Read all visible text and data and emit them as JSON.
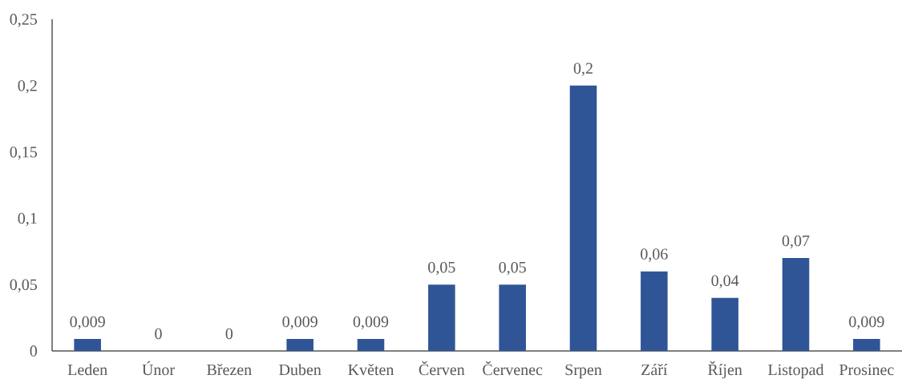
{
  "chart_data": {
    "type": "bar",
    "categories": [
      "Leden",
      "Únor",
      "Březen",
      "Duben",
      "Květen",
      "Červen",
      "Červenec",
      "Srpen",
      "Září",
      "Říjen",
      "Listopad",
      "Prosinec"
    ],
    "values": [
      0.009,
      0,
      0,
      0.009,
      0.009,
      0.05,
      0.05,
      0.2,
      0.06,
      0.04,
      0.07,
      0.009
    ],
    "value_labels": [
      "0,009",
      "0",
      "0",
      "0,009",
      "0,009",
      "0,05",
      "0,05",
      "0,2",
      "0,06",
      "0,04",
      "0,07",
      "0,009"
    ],
    "color": "#2f5597",
    "ylim": [
      0,
      0.25
    ],
    "yticks": [
      0,
      {
        "value": 0.05,
        "label": "0,05"
      },
      {
        "value": 0.1,
        "label": "0,1"
      },
      {
        "value": 0.15,
        "label": "0,15"
      },
      {
        "value": 0.2,
        "label": "0,2"
      },
      {
        "value": 0.25,
        "label": "0,25"
      }
    ]
  }
}
